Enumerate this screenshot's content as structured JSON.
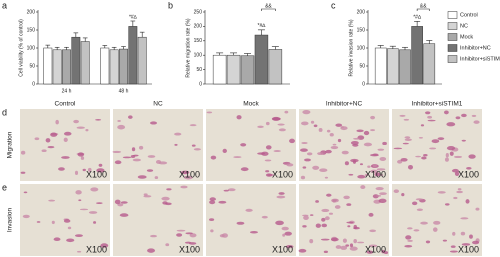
{
  "chart_data": [
    {
      "type": "bar",
      "ylabel": "Cell viability (% of control)",
      "categories": [
        "24 h",
        "48 h"
      ],
      "ylim": [
        0,
        200
      ],
      "yticks": [
        0,
        50,
        100,
        150,
        200
      ],
      "series": [
        {
          "color": "#ffffff",
          "values": [
            100,
            100
          ],
          "errors": [
            8,
            7
          ]
        },
        {
          "color": "#d4d4d4",
          "values": [
            95,
            95
          ],
          "errors": [
            7,
            7
          ]
        },
        {
          "color": "#a9a9a9",
          "values": [
            95,
            97
          ],
          "errors": [
            7,
            7
          ]
        },
        {
          "color": "#737373",
          "values": [
            130,
            160
          ],
          "errors": [
            12,
            15
          ]
        },
        {
          "color": "#c2c2c2",
          "values": [
            118,
            130
          ],
          "errors": [
            10,
            14
          ]
        }
      ],
      "annotation": "*#∆"
    },
    {
      "type": "bar",
      "ylabel": "Relative migration rate (%)",
      "categories": [
        null
      ],
      "ylim": [
        0,
        250
      ],
      "yticks": [
        0,
        50,
        100,
        150,
        200,
        250
      ],
      "series": [
        {
          "color": "#ffffff",
          "values": [
            100
          ],
          "errors": [
            8
          ]
        },
        {
          "color": "#d4d4d4",
          "values": [
            100
          ],
          "errors": [
            8
          ]
        },
        {
          "color": "#a9a9a9",
          "values": [
            98
          ],
          "errors": [
            8
          ]
        },
        {
          "color": "#737373",
          "values": [
            170
          ],
          "errors": [
            18
          ]
        },
        {
          "color": "#c2c2c2",
          "values": [
            120
          ],
          "errors": [
            10
          ]
        }
      ],
      "annotation": "*#∆",
      "comparison_label": "&&"
    },
    {
      "type": "bar",
      "ylabel": "Relative invasion rate (%)",
      "categories": [
        null
      ],
      "ylim": [
        0,
        200
      ],
      "yticks": [
        0,
        50,
        100,
        150,
        200
      ],
      "series": [
        {
          "name": "Control",
          "color": "#ffffff",
          "values": [
            100
          ],
          "errors": [
            7
          ]
        },
        {
          "name": "NC",
          "color": "#d4d4d4",
          "values": [
            98
          ],
          "errors": [
            7
          ]
        },
        {
          "name": "Mock",
          "color": "#a9a9a9",
          "values": [
            95
          ],
          "errors": [
            7
          ]
        },
        {
          "name": "Inhibitor+NC",
          "color": "#737373",
          "values": [
            160
          ],
          "errors": [
            14
          ]
        },
        {
          "name": "Inhibitor+siSTIM1",
          "color": "#c2c2c2",
          "values": [
            112
          ],
          "errors": [
            9
          ]
        }
      ],
      "annotation": "*#∆",
      "comparison_label": "&&"
    }
  ],
  "panel_labels": [
    "a",
    "b",
    "c",
    "d",
    "e"
  ],
  "images": {
    "columns": [
      "Control",
      "NC",
      "Mock",
      "Inhibitor+NC",
      "Inhibitor+siSTIM1"
    ],
    "rows": [
      "Migration",
      "Invasion"
    ],
    "magnification": "X100"
  }
}
